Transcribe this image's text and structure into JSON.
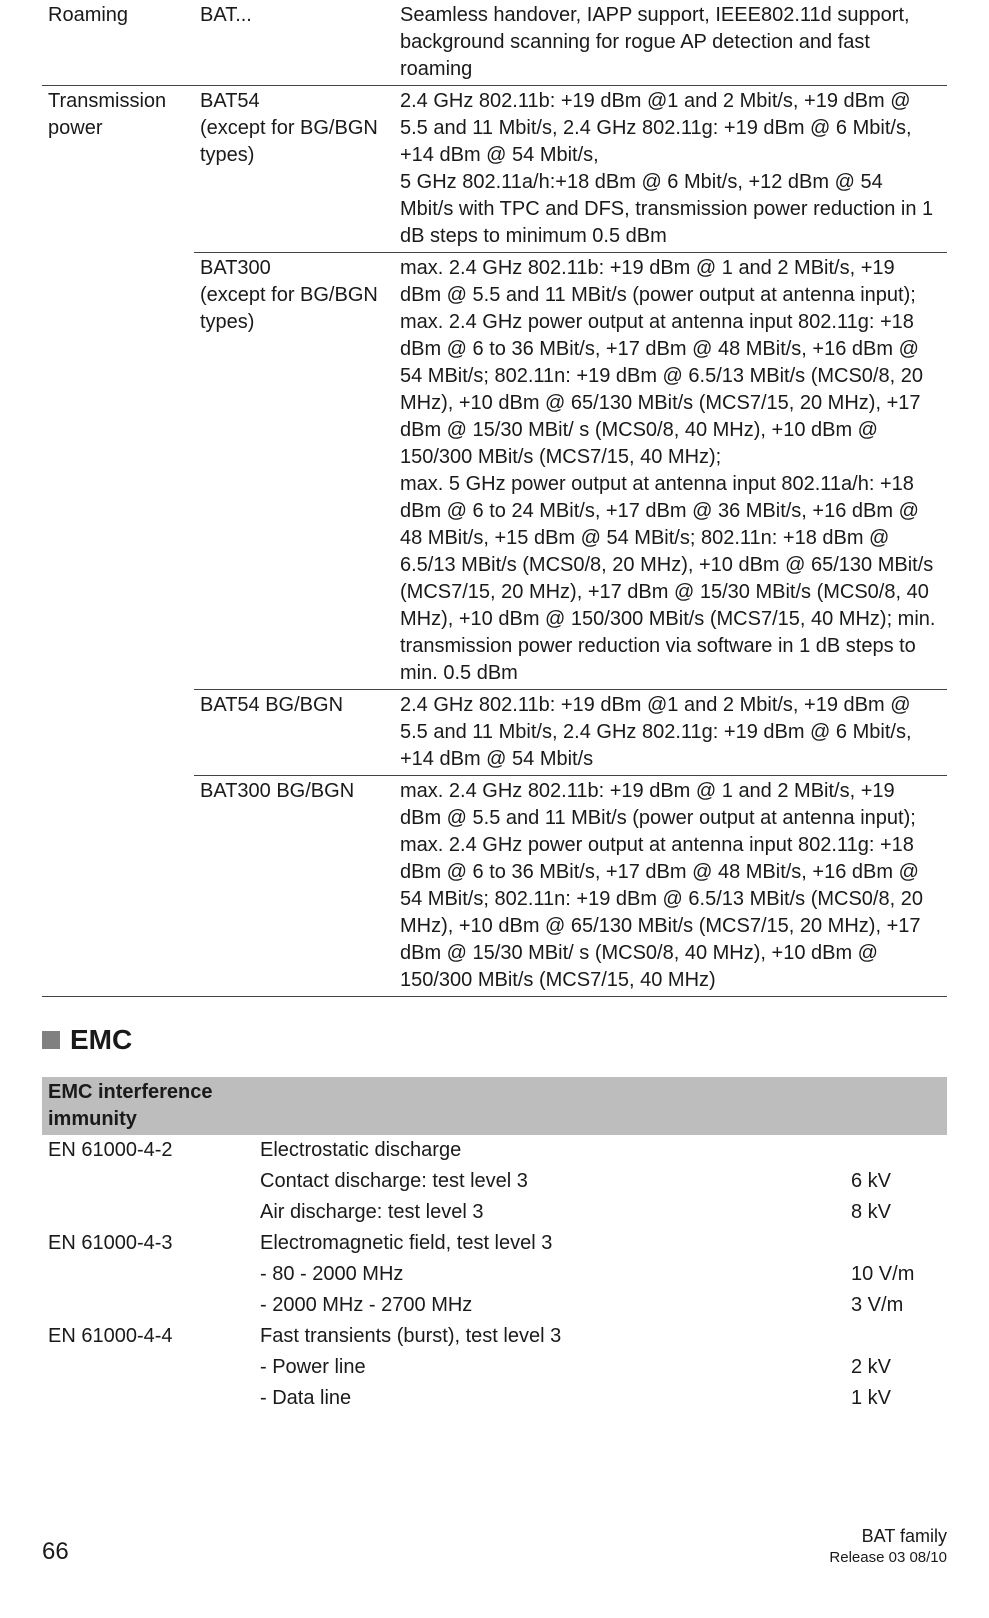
{
  "spec": {
    "rows": [
      {
        "col1": "Roaming",
        "col2": "BAT...",
        "col3": "Seamless handover, IAPP support, IEEE802.11d support, background scanning for rogue AP detection and fast roaming",
        "topline": false
      },
      {
        "col1": "Transmission power",
        "col2": "BAT54\n(except for BG/BGN types)",
        "col3": "2.4 GHz 802.11b: +19 dBm @1 and 2 Mbit/s, +19 dBm @ 5.5 and 11 Mbit/s, 2.4 GHz 802.11g: +19 dBm @ 6 Mbit/s, +14 dBm @ 54 Mbit/s,\n5 GHz 802.11a/h:+18 dBm @ 6 Mbit/s, +12 dBm @ 54 Mbit/s with TPC and DFS, transmission power reduction in 1 dB steps to minimum 0.5 dBm",
        "topline": true
      },
      {
        "col1": "",
        "col2": "BAT300\n(except for BG/BGN types)",
        "col3": "max. 2.4 GHz 802.11b: +19 dBm @ 1 and 2 MBit/s, +19 dBm @ 5.5 and 11 MBit/s (power output at antenna input); max. 2.4 GHz power output at antenna input 802.11g: +18 dBm @ 6 to 36 MBit/s, +17 dBm @ 48 MBit/s, +16 dBm @ 54 MBit/s; 802.11n: +19 dBm @ 6.5/13 MBit/s (MCS0/8, 20 MHz), +10 dBm @ 65/130 MBit/s (MCS7/15, 20 MHz), +17 dBm @ 15/30 MBit/ s (MCS0/8, 40 MHz), +10 dBm @ 150/300 MBit/s (MCS7/15, 40 MHz);\nmax. 5 GHz power output at antenna input 802.11a/h: +18 dBm @ 6 to 24 MBit/s, +17 dBm @ 36 MBit/s, +16 dBm @ 48 MBit/s, +15 dBm @ 54 MBit/s; 802.11n: +18 dBm @ 6.5/13 MBit/s (MCS0/8, 20 MHz), +10 dBm @ 65/130 MBit/s (MCS7/15, 20 MHz), +17 dBm @ 15/30 MBit/s (MCS0/8, 40 MHz), +10 dBm @ 150/300 MBit/s (MCS7/15, 40 MHz); min. transmission power reduction via software in 1 dB steps to min. 0.5 dBm",
        "topline": true,
        "notop_col1": true
      },
      {
        "col1": "",
        "col2": "BAT54 BG/BGN",
        "col3": "2.4 GHz 802.11b: +19 dBm @1 and 2 Mbit/s, +19 dBm @ 5.5 and 11 Mbit/s, 2.4 GHz 802.11g: +19 dBm @ 6 Mbit/s, +14 dBm @ 54 Mbit/s",
        "topline": true,
        "notop_col1": true
      },
      {
        "col1": "",
        "col2": "BAT300 BG/BGN",
        "col3": "max. 2.4 GHz 802.11b: +19 dBm @ 1 and 2 MBit/s, +19 dBm @ 5.5 and 11 MBit/s (power output at antenna input); max. 2.4 GHz power output at antenna input 802.11g: +18 dBm @ 6 to 36 MBit/s, +17 dBm @ 48 MBit/s, +16 dBm @ 54 MBit/s; 802.11n: +19 dBm @ 6.5/13 MBit/s (MCS0/8, 20 MHz), +10 dBm @ 65/130 MBit/s (MCS7/15, 20 MHz), +17 dBm @ 15/30 MBit/ s (MCS0/8, 40 MHz), +10 dBm @ 150/300 MBit/s (MCS7/15, 40 MHz)",
        "topline": true,
        "notop_col1": true
      }
    ],
    "bottomline": true
  },
  "section": {
    "title": "EMC"
  },
  "emc": {
    "header": "EMC interference immunity",
    "rows": [
      {
        "std": "EN 61000-4-2",
        "lines": [
          {
            "desc": "Electrostatic discharge",
            "val": ""
          },
          {
            "desc": "Contact discharge: test level 3",
            "val": "6 kV"
          },
          {
            "desc": "Air discharge: test level 3",
            "val": "8 kV"
          }
        ]
      },
      {
        "std": "EN 61000-4-3",
        "lines": [
          {
            "desc": "Electromagnetic field, test level 3",
            "val": ""
          },
          {
            "desc": "- 80 - 2000 MHz",
            "val": "10 V/m"
          },
          {
            "desc": "- 2000 MHz - 2700 MHz",
            "val": "3 V/m"
          }
        ]
      },
      {
        "std": "EN 61000-4-4",
        "lines": [
          {
            "desc": "Fast transients (burst), test level 3",
            "val": ""
          },
          {
            "desc": "- Power line",
            "val": "2 kV"
          },
          {
            "desc": "- Data line",
            "val": "1 kV"
          }
        ]
      }
    ]
  },
  "footer": {
    "page": "66",
    "right1": "BAT family",
    "right2": "Release  03  08/10"
  }
}
